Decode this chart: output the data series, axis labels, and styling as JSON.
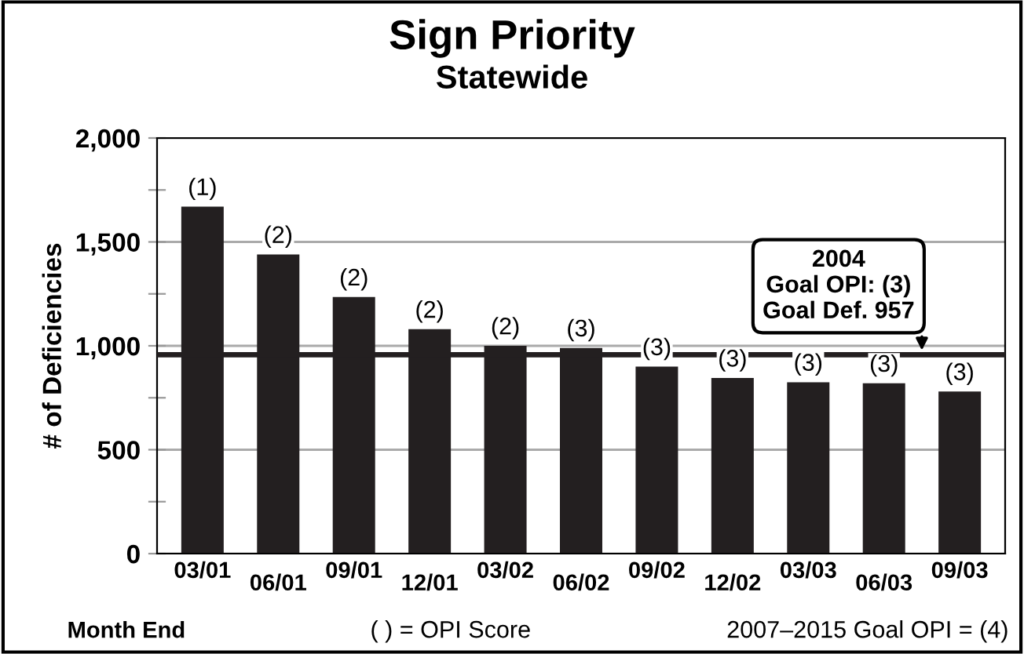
{
  "chart_data": {
    "type": "bar",
    "title": "Sign Priority",
    "subtitle": "Statewide",
    "xlabel": "Month End",
    "ylabel": "# of Deficiencies",
    "categories": [
      "03/01",
      "06/01",
      "09/01",
      "12/01",
      "03/02",
      "06/02",
      "09/02",
      "12/02",
      "03/03",
      "06/03",
      "09/03"
    ],
    "values": [
      1670,
      1440,
      1235,
      1080,
      1000,
      990,
      900,
      845,
      825,
      820,
      780
    ],
    "color": "#231f20",
    "ylim": [
      0,
      2000
    ],
    "yticks": [
      0,
      {
        "value": 250,
        "label": null
      },
      500,
      {
        "value": 750,
        "label": null
      },
      {
        "value": 1000,
        "label": "1,000"
      },
      {
        "value": 1250,
        "label": null
      },
      {
        "value": 1500,
        "label": "1,500"
      },
      {
        "value": 1750,
        "label": null
      },
      {
        "value": 2000,
        "label": "2,000"
      }
    ],
    "grid": "y",
    "ref_lines": [
      {
        "axis": "y",
        "value": 957,
        "color": "#231f20"
      }
    ],
    "annotations": [
      {
        "text": "2004\nGoal OPI: (3)\nGoal Def. 957",
        "x": "09/03",
        "y": 957
      },
      "( ) = OPI Score",
      "2007–2015 Goal OPI = (4)",
      {
        "text": "(1)",
        "x": "03/01",
        "y": 1670
      },
      {
        "text": "(2)",
        "x": "06/01",
        "y": 1440
      },
      {
        "text": "(2)",
        "x": "09/01",
        "y": 1235
      },
      {
        "text": "(2)",
        "x": "12/01",
        "y": 1080
      },
      {
        "text": "(2)",
        "x": "03/02",
        "y": 1000
      },
      {
        "text": "(3)",
        "x": "06/02",
        "y": 990
      },
      {
        "text": "(3)",
        "x": "09/02",
        "y": 900
      },
      {
        "text": "(3)",
        "x": "12/02",
        "y": 845
      },
      {
        "text": "(3)",
        "x": "03/03",
        "y": 825
      },
      {
        "text": "(3)",
        "x": "06/03",
        "y": 820
      },
      {
        "text": "(3)",
        "x": "09/03",
        "y": 780
      }
    ]
  }
}
